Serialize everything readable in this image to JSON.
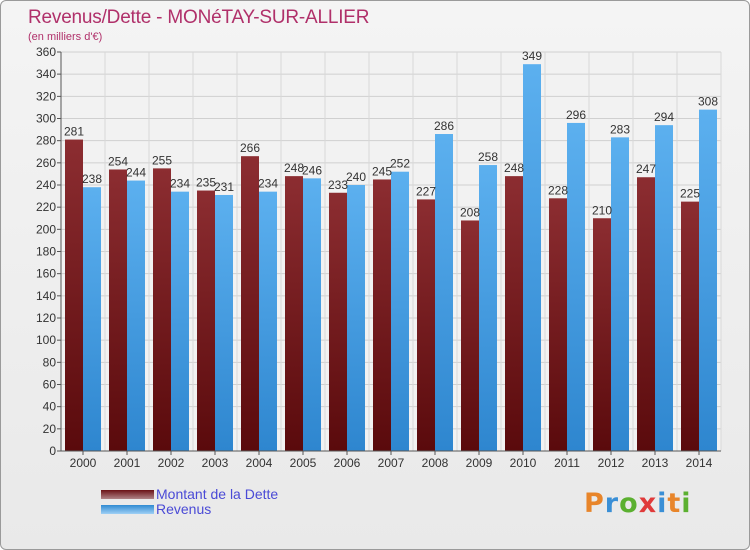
{
  "chart_data": {
    "type": "bar",
    "title": "Revenus/Dette - MONéTAY-SUR-ALLIER",
    "subtitle": "(en milliers d'€)",
    "categories": [
      "2000",
      "2001",
      "2002",
      "2003",
      "2004",
      "2005",
      "2006",
      "2007",
      "2008",
      "2009",
      "2010",
      "2011",
      "2012",
      "2013",
      "2014"
    ],
    "series": [
      {
        "name": "Montant de la Dette",
        "color": "#7a1f24",
        "values": [
          281,
          254,
          255,
          235,
          266,
          248,
          233,
          245,
          227,
          208,
          248,
          228,
          210,
          247,
          225
        ]
      },
      {
        "name": "Revenus",
        "color": "#4ea3e6",
        "values": [
          238,
          244,
          234,
          231,
          234,
          246,
          240,
          252,
          286,
          258,
          349,
          296,
          283,
          294,
          308
        ]
      }
    ],
    "ylim": [
      0,
      360
    ],
    "yticks": [
      0,
      20,
      40,
      60,
      80,
      100,
      120,
      140,
      160,
      180,
      200,
      220,
      240,
      260,
      280,
      300,
      320,
      340,
      360
    ],
    "grid": true,
    "legend_position": "bottom-left"
  },
  "logo": {
    "text": "Proxiti",
    "letters": [
      "P",
      "r",
      "o",
      "x",
      "i",
      "t",
      "i"
    ],
    "colors": [
      "#e8852a",
      "#3a8fd6",
      "#5bb030",
      "#e03a3a",
      "#3a8fd6",
      "#e8852a",
      "#5bb030"
    ]
  }
}
